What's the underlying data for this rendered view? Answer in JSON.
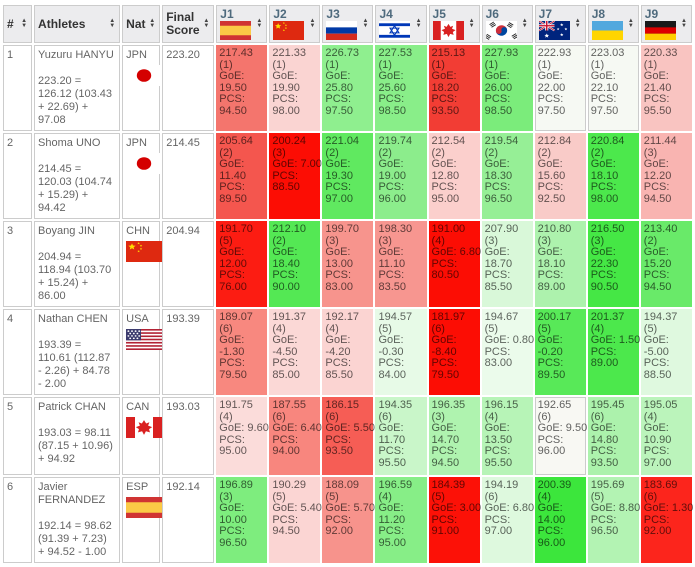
{
  "colors": {
    "header_bg": "#ececee",
    "border": "#cccccc",
    "judge_label": "#4e6a7d",
    "header_text": "#333333",
    "body_text": "rgba(0,0,0,0.62)"
  },
  "icons": {
    "sort_asc": "▲",
    "sort_desc": "▼"
  },
  "labels": {
    "goe": "GoE:",
    "pcs": "PCS:"
  },
  "headers": {
    "rank": "#",
    "athletes": "Athletes",
    "nat": "Nat",
    "final_score": "Final Score"
  },
  "judges": [
    {
      "label": "J1",
      "flag": "esp"
    },
    {
      "label": "J2",
      "flag": "chn"
    },
    {
      "label": "J3",
      "flag": "rus"
    },
    {
      "label": "J4",
      "flag": "isr"
    },
    {
      "label": "J5",
      "flag": "can"
    },
    {
      "label": "J6",
      "flag": "kor"
    },
    {
      "label": "J7",
      "flag": "aus"
    },
    {
      "label": "J8",
      "flag": "ukr"
    },
    {
      "label": "J9",
      "flag": "ger"
    }
  ],
  "rows": [
    {
      "rank": "1",
      "athlete": "Yuzuru HANYU",
      "breakdown": "223.20 = 126.12 (103.43 + 22.69) + 97.08",
      "nat": "JPN",
      "flag": "jpn",
      "final_score": "223.20",
      "judge_scores": [
        {
          "score": "217.43",
          "rank": "(1)",
          "goe": "19.50",
          "pcs": "94.50",
          "bg": "#f4756d"
        },
        {
          "score": "221.33",
          "rank": "(1)",
          "goe": "19.90",
          "pcs": "98.00",
          "bg": "#fad4d2"
        },
        {
          "score": "226.73",
          "rank": "(1)",
          "goe": "25.80",
          "pcs": "97.50",
          "bg": "#8fef8f"
        },
        {
          "score": "227.53",
          "rank": "(1)",
          "goe": "25.60",
          "pcs": "98.50",
          "bg": "#89ee89"
        },
        {
          "score": "215.13",
          "rank": "(1)",
          "goe": "18.20",
          "pcs": "93.50",
          "bg": "#f23d34"
        },
        {
          "score": "227.93",
          "rank": "(1)",
          "goe": "26.00",
          "pcs": "98.50",
          "bg": "#7bec7b"
        },
        {
          "score": "222.93",
          "rank": "(1)",
          "goe": "22.00",
          "pcs": "97.50",
          "bg": "#f6f9f3"
        },
        {
          "score": "223.03",
          "rank": "(1)",
          "goe": "22.10",
          "pcs": "97.50",
          "bg": "#f6f9f3"
        },
        {
          "score": "220.33",
          "rank": "(1)",
          "goe": "21.40",
          "pcs": "95.50",
          "bg": "#f9c4c1"
        }
      ]
    },
    {
      "rank": "2",
      "athlete": "Shoma UNO",
      "breakdown": "214.45 = 120.03 (104.74 + 15.29) + 94.42",
      "nat": "JPN",
      "flag": "jpn",
      "final_score": "214.45",
      "judge_scores": [
        {
          "score": "205.64",
          "rank": "(2)",
          "goe": "11.40",
          "pcs": "89.50",
          "bg": "#f4564e"
        },
        {
          "score": "200.24",
          "rank": "(3)",
          "goe": "7.00",
          "pcs": "88.50",
          "bg": "#fc0d04"
        },
        {
          "score": "221.04",
          "rank": "(2)",
          "goe": "19.30",
          "pcs": "97.00",
          "bg": "#60e960"
        },
        {
          "score": "219.74",
          "rank": "(2)",
          "goe": "19.00",
          "pcs": "96.00",
          "bg": "#8ced8c"
        },
        {
          "score": "212.54",
          "rank": "(2)",
          "goe": "12.80",
          "pcs": "95.00",
          "bg": "#fbcfcc"
        },
        {
          "score": "219.54",
          "rank": "(2)",
          "goe": "18.30",
          "pcs": "96.50",
          "bg": "#96ef96"
        },
        {
          "score": "212.84",
          "rank": "(2)",
          "goe": "15.60",
          "pcs": "92.50",
          "bg": "#f9cbc8"
        },
        {
          "score": "220.84",
          "rank": "(2)",
          "goe": "18.10",
          "pcs": "98.00",
          "bg": "#4ce84c"
        },
        {
          "score": "211.44",
          "rank": "(3)",
          "goe": "12.20",
          "pcs": "94.50",
          "bg": "#f9b4b1"
        }
      ]
    },
    {
      "rank": "3",
      "athlete": "Boyang JIN",
      "breakdown": "204.94 = 118.94 (103.70 + 15.24) + 86.00",
      "nat": "CHN",
      "flag": "chn",
      "final_score": "204.94",
      "judge_scores": [
        {
          "score": "191.70",
          "rank": "(5)",
          "goe": "12.00",
          "pcs": "76.00",
          "bg": "#fc1c12"
        },
        {
          "score": "212.10",
          "rank": "(2)",
          "goe": "18.40",
          "pcs": "90.00",
          "bg": "#54e854"
        },
        {
          "score": "199.70",
          "rank": "(3)",
          "goe": "13.00",
          "pcs": "83.00",
          "bg": "#f7948d"
        },
        {
          "score": "198.30",
          "rank": "(3)",
          "goe": "11.10",
          "pcs": "83.50",
          "bg": "#f79690"
        },
        {
          "score": "191.00",
          "rank": "(4)",
          "goe": "6.80",
          "pcs": "80.50",
          "bg": "#fc0d04"
        },
        {
          "score": "207.90",
          "rank": "(3)",
          "goe": "18.70",
          "pcs": "85.50",
          "bg": "#d9f8d9"
        },
        {
          "score": "210.80",
          "rank": "(3)",
          "goe": "18.10",
          "pcs": "89.00",
          "bg": "#adf2ad"
        },
        {
          "score": "216.50",
          "rank": "(3)",
          "goe": "22.30",
          "pcs": "90.50",
          "bg": "#45e745"
        },
        {
          "score": "213.40",
          "rank": "(2)",
          "goe": "15.20",
          "pcs": "94.50",
          "bg": "#69ea69"
        }
      ]
    },
    {
      "rank": "4",
      "athlete": "Nathan CHEN",
      "breakdown": "193.39 = 110.61 (112.87 - 2.26) + 84.78 - 2.00",
      "nat": "USA",
      "flag": "usa",
      "final_score": "193.39",
      "judge_scores": [
        {
          "score": "189.07",
          "rank": "(6)",
          "goe": "-1.30",
          "pcs": "79.50",
          "bg": "#f8887f"
        },
        {
          "score": "191.37",
          "rank": "(4)",
          "goe": "-4.50",
          "pcs": "85.00",
          "bg": "#fbd8d6"
        },
        {
          "score": "192.17",
          "rank": "(4)",
          "goe": "-4.20",
          "pcs": "85.50",
          "bg": "#fbd4d2"
        },
        {
          "score": "194.57",
          "rank": "(5)",
          "goe": "-0.30",
          "pcs": "84.00",
          "bg": "#e7fae7"
        },
        {
          "score": "181.97",
          "rank": "(6)",
          "goe": "-8.40",
          "pcs": "79.50",
          "bg": "#fc0d04"
        },
        {
          "score": "194.67",
          "rank": "(5)",
          "goe": "0.80",
          "pcs": "83.00",
          "bg": "#ebfbeb"
        },
        {
          "score": "200.17",
          "rank": "(5)",
          "goe": "-0.20",
          "pcs": "89.50",
          "bg": "#58e958"
        },
        {
          "score": "201.37",
          "rank": "(4)",
          "goe": "1.50",
          "pcs": "89.00",
          "bg": "#4ce84c"
        },
        {
          "score": "194.37",
          "rank": "(5)",
          "goe": "-5.00",
          "pcs": "88.50",
          "bg": "#dff9df"
        }
      ]
    },
    {
      "rank": "5",
      "athlete": "Patrick CHAN",
      "breakdown": "193.03 = 98.11 (87.15 + 10.96) + 94.92",
      "nat": "CAN",
      "flag": "can",
      "final_score": "193.03",
      "judge_scores": [
        {
          "score": "191.75",
          "rank": "(4)",
          "goe": "9.60",
          "pcs": "95.00",
          "bg": "#fbdcda"
        },
        {
          "score": "187.55",
          "rank": "(6)",
          "goe": "6.40",
          "pcs": "94.00",
          "bg": "#f8867e"
        },
        {
          "score": "186.15",
          "rank": "(6)",
          "goe": "5.50",
          "pcs": "93.50",
          "bg": "#f65d55"
        },
        {
          "score": "194.35",
          "rank": "(6)",
          "goe": "11.70",
          "pcs": "95.50",
          "bg": "#c9f6c9"
        },
        {
          "score": "196.35",
          "rank": "(3)",
          "goe": "14.70",
          "pcs": "94.50",
          "bg": "#aff3af"
        },
        {
          "score": "196.15",
          "rank": "(4)",
          "goe": "13.50",
          "pcs": "95.50",
          "bg": "#b7f4b7"
        },
        {
          "score": "192.65",
          "rank": "(6)",
          "goe": "9.50",
          "pcs": "96.00",
          "bg": "#f8f8f3"
        },
        {
          "score": "195.45",
          "rank": "(6)",
          "goe": "14.80",
          "pcs": "93.50",
          "bg": "#acf2ac"
        },
        {
          "score": "195.05",
          "rank": "(4)",
          "goe": "10.90",
          "pcs": "97.00",
          "bg": "#bbf4bb"
        }
      ]
    },
    {
      "rank": "6",
      "athlete": "Javier FERNANDEZ",
      "breakdown": "192.14 = 98.62 (91.39 + 7.23) + 94.52 - 1.00",
      "nat": "ESP",
      "flag": "esp",
      "final_score": "192.14",
      "judge_scores": [
        {
          "score": "196.89",
          "rank": "(3)",
          "goe": "10.00",
          "pcs": "96.50",
          "bg": "#7eed7e"
        },
        {
          "score": "190.29",
          "rank": "(5)",
          "goe": "5.40",
          "pcs": "94.50",
          "bg": "#fbd5d3"
        },
        {
          "score": "188.09",
          "rank": "(5)",
          "goe": "5.70",
          "pcs": "92.00",
          "bg": "#f7938c"
        },
        {
          "score": "196.59",
          "rank": "(4)",
          "goe": "11.20",
          "pcs": "95.00",
          "bg": "#87ee87"
        },
        {
          "score": "184.39",
          "rank": "(5)",
          "goe": "3.00",
          "pcs": "91.00",
          "bg": "#fc1107"
        },
        {
          "score": "194.19",
          "rank": "(6)",
          "goe": "6.80",
          "pcs": "97.00",
          "bg": "#def9de"
        },
        {
          "score": "200.39",
          "rank": "(4)",
          "goe": "14.00",
          "pcs": "96.00",
          "bg": "#3ce63c"
        },
        {
          "score": "195.69",
          "rank": "(5)",
          "goe": "8.80",
          "pcs": "96.50",
          "bg": "#b3f3b3"
        },
        {
          "score": "183.69",
          "rank": "(6)",
          "goe": "1.30",
          "pcs": "92.00",
          "bg": "#fc251c"
        }
      ]
    }
  ]
}
